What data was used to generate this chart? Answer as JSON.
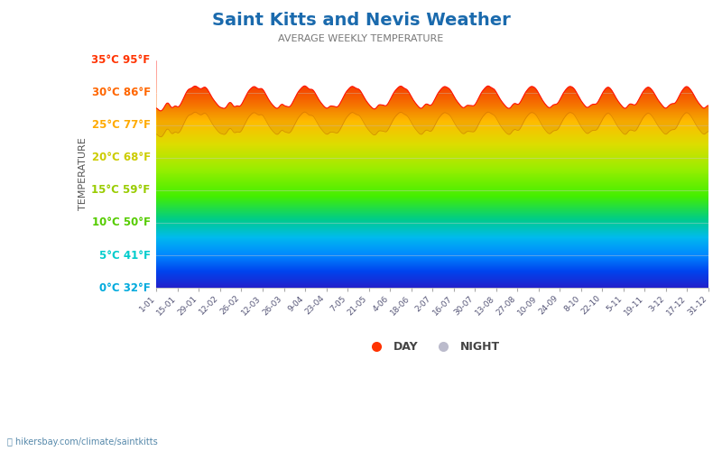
{
  "title": "Saint Kitts and Nevis Weather",
  "subtitle": "AVERAGE WEEKLY TEMPERATURE",
  "ylabel": "TEMPERATURE",
  "website": "hikersbay.com/climate/saintkitts",
  "yticks_c": [
    0,
    5,
    10,
    15,
    20,
    25,
    30,
    35
  ],
  "yticks_f": [
    32,
    41,
    50,
    59,
    68,
    77,
    86,
    95
  ],
  "ylim_min": 0,
  "ylim_max": 35,
  "xtick_labels": [
    "1-01",
    "15-01",
    "29-01",
    "12-02",
    "26-02",
    "12-03",
    "26-03",
    "9-04",
    "23-04",
    "7-05",
    "21-05",
    "4-06",
    "18-06",
    "2-07",
    "16-07",
    "30-07",
    "13-08",
    "27-08",
    "10-09",
    "24-09",
    "8-10",
    "22-10",
    "5-11",
    "19-11",
    "3-12",
    "17-12",
    "31-12"
  ],
  "title_color": "#1a6aad",
  "subtitle_color": "#777777",
  "ylabel_color": "#555555",
  "tick_colors": {
    "0": "#00aadd",
    "5": "#00cccc",
    "10": "#55cc00",
    "15": "#99cc00",
    "20": "#cccc00",
    "25": "#ffaa00",
    "30": "#ff6600",
    "35": "#ff3300"
  },
  "legend_day_color": "#ff3300",
  "legend_night_color": "#bbbbcc",
  "background_color": "#ffffff",
  "rainbow_colors": [
    [
      0.0,
      "#2222cc"
    ],
    [
      0.07,
      "#0044ee"
    ],
    [
      0.14,
      "#0088ff"
    ],
    [
      0.22,
      "#00bbee"
    ],
    [
      0.3,
      "#00cc88"
    ],
    [
      0.4,
      "#44ee00"
    ],
    [
      0.52,
      "#99ee00"
    ],
    [
      0.63,
      "#dddd00"
    ],
    [
      0.73,
      "#ffbb00"
    ],
    [
      0.83,
      "#ff6600"
    ],
    [
      0.92,
      "#ff2200"
    ],
    [
      1.0,
      "#ff0000"
    ]
  ],
  "day_temps_weekly": [
    27.8,
    27.5,
    27.3,
    27.2,
    27.0,
    27.1,
    27.3,
    27.6,
    27.9,
    28.2,
    28.6,
    28.7,
    28.4,
    28.0,
    27.6,
    27.4,
    27.6,
    27.9,
    28.3,
    28.0,
    27.7,
    27.5,
    27.8,
    28.1,
    28.4,
    28.7,
    29.0,
    29.5,
    29.8,
    30.1,
    30.4,
    30.6,
    30.7,
    30.5,
    30.6,
    30.8,
    31.0,
    31.2,
    31.0,
    30.9,
    30.8,
    30.7,
    30.5,
    30.4,
    30.6,
    30.8,
    30.9,
    31.0,
    30.8,
    30.6,
    30.3,
    30.0,
    29.7,
    29.4,
    29.1,
    28.9,
    28.7,
    28.5,
    28.3,
    28.1,
    27.9,
    27.7,
    27.6,
    27.8,
    27.6,
    27.5,
    27.4,
    27.6,
    27.9,
    28.2,
    28.5,
    28.8,
    28.6,
    28.3,
    27.9,
    27.5,
    27.7,
    28.0,
    28.3,
    27.9,
    27.6,
    27.8,
    28.1,
    28.4,
    28.7,
    29.1,
    29.4,
    29.7,
    30.0,
    30.3,
    30.5,
    30.6,
    30.7,
    30.9,
    31.1,
    31.0,
    30.8,
    30.7,
    30.5,
    30.4,
    30.6,
    30.8,
    30.7,
    30.5,
    30.2,
    29.9,
    29.6,
    29.3,
    29.0,
    28.7,
    28.5,
    28.3,
    28.1,
    27.9,
    27.8,
    27.6,
    27.5,
    27.4,
    27.6,
    27.9,
    28.2,
    28.5,
    28.3,
    28.0,
    27.7,
    27.9,
    28.1,
    27.8,
    27.5,
    27.8,
    28.0,
    28.3,
    28.6,
    29.0,
    29.3,
    29.6,
    29.9,
    30.2,
    30.4,
    30.5,
    30.7,
    30.9,
    31.0,
    31.2,
    31.1,
    30.9,
    30.7,
    30.5,
    30.3,
    30.5,
    30.7,
    30.5,
    30.3,
    30.0,
    29.7,
    29.4,
    29.1,
    28.8,
    28.6,
    28.4,
    28.2,
    28.0,
    27.8,
    27.7,
    27.5,
    27.4,
    27.6,
    27.9,
    28.2,
    28.0,
    27.7,
    27.9,
    28.1,
    27.8,
    27.5,
    27.7,
    28.0,
    28.2,
    28.5,
    28.8,
    29.2,
    29.5,
    29.8,
    30.1,
    30.3,
    30.5,
    30.6,
    30.8,
    31.0,
    31.1,
    31.0,
    30.8,
    30.7,
    30.5,
    30.6,
    30.7,
    30.5,
    30.3,
    30.0,
    29.7,
    29.4,
    29.1,
    28.8,
    28.6,
    28.4,
    28.2,
    28.0,
    27.8,
    27.7,
    27.5,
    27.4,
    27.3,
    27.5,
    27.8,
    28.1,
    28.4,
    28.2,
    27.9,
    28.1,
    28.3,
    28.0,
    27.7,
    27.9,
    28.1,
    28.4,
    28.7,
    29.0,
    29.3,
    29.7,
    30.0,
    30.2,
    30.4,
    30.6,
    30.7,
    30.9,
    31.0,
    31.2,
    31.0,
    30.8,
    30.6,
    30.5,
    30.7,
    30.5,
    30.3,
    30.0,
    29.7,
    29.4,
    29.1,
    28.8,
    28.6,
    28.4,
    28.2,
    28.0,
    27.8,
    27.6,
    27.5,
    27.4,
    27.6,
    27.9,
    28.2,
    28.4,
    28.2,
    28.4,
    28.1,
    27.8,
    27.9,
    28.1,
    28.4,
    28.7,
    29.0,
    29.4,
    29.7,
    30.0,
    30.2,
    30.4,
    30.6,
    30.7,
    30.9,
    31.1,
    31.0,
    30.8,
    30.7,
    30.8,
    30.6,
    30.4,
    30.1,
    29.8,
    29.5,
    29.2,
    28.9,
    28.7,
    28.5,
    28.3,
    28.1,
    27.9,
    27.7,
    27.6,
    27.5,
    27.7,
    28.0,
    28.3,
    28.1,
    27.8,
    28.0,
    28.2,
    28.0,
    27.7,
    27.9,
    28.2,
    28.5,
    28.8,
    29.1,
    29.5,
    29.8,
    30.1,
    30.3,
    30.5,
    30.7,
    30.8,
    31.0,
    31.2,
    31.1,
    30.9,
    30.7,
    30.6,
    30.8,
    30.6,
    30.4,
    30.1,
    29.8,
    29.5,
    29.2,
    28.9,
    28.7,
    28.5,
    28.3,
    28.1,
    27.9,
    27.7,
    27.6,
    27.5,
    27.4,
    27.6,
    27.9,
    28.2,
    28.5,
    28.3,
    28.5,
    28.2,
    27.9,
    28.1,
    28.4,
    28.7,
    29.0,
    29.3,
    29.7,
    30.0,
    30.2,
    30.4,
    30.6,
    30.8,
    30.9,
    31.1,
    31.0,
    30.8,
    30.9,
    30.7,
    30.5,
    30.2,
    29.9,
    29.6,
    29.3,
    29.0,
    28.7,
    28.5,
    28.3,
    28.1,
    27.9,
    27.7,
    27.6,
    27.5,
    27.7,
    28.0,
    28.3,
    28.1,
    28.3,
    28.0,
    28.2,
    28.4,
    28.7,
    29.0,
    29.4,
    29.7,
    30.0,
    30.2,
    30.4,
    30.6,
    30.8,
    30.9,
    31.1,
    31.0,
    30.8,
    30.9,
    30.7,
    30.5,
    30.2,
    29.9,
    29.6,
    29.3,
    29.0,
    28.7,
    28.5,
    28.3,
    28.1,
    27.9,
    27.7,
    27.5,
    27.6,
    27.9,
    28.2,
    28.0,
    28.2,
    28.4,
    28.2,
    28.0,
    28.2,
    28.4,
    28.7,
    29.1,
    29.4,
    29.7,
    30.0,
    30.3,
    30.5,
    30.7,
    30.8,
    31.0,
    30.9,
    30.7,
    30.5,
    30.3,
    30.0,
    29.7,
    29.4,
    29.1,
    28.8,
    28.6,
    28.4,
    28.2,
    28.0,
    27.8,
    27.6,
    27.5,
    27.4,
    27.6,
    27.9,
    28.2,
    28.5,
    28.3,
    28.1,
    28.3,
    28.1,
    27.8,
    28.1,
    28.4,
    28.7,
    29.0,
    29.3,
    29.6,
    30.0,
    30.2,
    30.4,
    30.6,
    30.7,
    30.9,
    31.0,
    30.8,
    30.7,
    30.5,
    30.3,
    30.1,
    29.8,
    29.5,
    29.2,
    28.9,
    28.7,
    28.5,
    28.3,
    28.1,
    27.9,
    27.7,
    27.5,
    27.4,
    27.6,
    27.9,
    28.2,
    28.0,
    28.3,
    28.5,
    28.3,
    28.1,
    28.3,
    28.6,
    28.9,
    29.2,
    29.6,
    29.9,
    30.2,
    30.4,
    30.6,
    30.8,
    31.0,
    31.1,
    30.9,
    30.8,
    30.6,
    30.4,
    30.2,
    29.9,
    29.6,
    29.3,
    29.0,
    28.7,
    28.5,
    28.3,
    28.1,
    27.9,
    27.7,
    27.5,
    27.4,
    27.6,
    27.9,
    28.2,
    28.0
  ],
  "night_temps_weekly": [
    23.8,
    23.5,
    23.3,
    23.2,
    23.0,
    23.1,
    23.3,
    23.6,
    23.9,
    24.2,
    24.6,
    24.7,
    24.4,
    24.0,
    23.6,
    23.4,
    23.6,
    23.9,
    24.3,
    24.0,
    23.7,
    23.5,
    23.8,
    24.1,
    24.4,
    24.7,
    25.0,
    25.5,
    25.8,
    26.1,
    26.4,
    26.6,
    26.7,
    26.5,
    26.6,
    26.8,
    27.0,
    27.2,
    27.0,
    26.9,
    26.8,
    26.7,
    26.5,
    26.4,
    26.6,
    26.8,
    26.9,
    27.0,
    26.8,
    26.6,
    26.3,
    26.0,
    25.7,
    25.4,
    25.1,
    24.9,
    24.7,
    24.5,
    24.3,
    24.1,
    23.9,
    23.7,
    23.6,
    23.8,
    23.6,
    23.5,
    23.4,
    23.6,
    23.9,
    24.2,
    24.5,
    24.8,
    24.6,
    24.3,
    23.9,
    23.5,
    23.7,
    24.0,
    24.3,
    23.9,
    23.6,
    23.8,
    24.1,
    24.4,
    24.7,
    25.1,
    25.4,
    25.7,
    26.0,
    26.3,
    26.5,
    26.6,
    26.7,
    26.9,
    27.1,
    27.0,
    26.8,
    26.7,
    26.5,
    26.4,
    26.6,
    26.8,
    26.7,
    26.5,
    26.2,
    25.9,
    25.6,
    25.3,
    25.0,
    24.7,
    24.5,
    24.3,
    24.1,
    23.9,
    23.8,
    23.6,
    23.5,
    23.4,
    23.6,
    23.9,
    24.2,
    24.5,
    24.3,
    24.0,
    23.7,
    23.9,
    24.1,
    23.8,
    23.5,
    23.8,
    24.0,
    24.3,
    24.6,
    25.0,
    25.3,
    25.6,
    25.9,
    26.2,
    26.4,
    26.5,
    26.7,
    26.9,
    27.0,
    27.2,
    27.1,
    26.9,
    26.7,
    26.5,
    26.3,
    26.5,
    26.7,
    26.5,
    26.3,
    26.0,
    25.7,
    25.4,
    25.1,
    24.8,
    24.6,
    24.4,
    24.2,
    24.0,
    23.8,
    23.7,
    23.5,
    23.4,
    23.6,
    23.9,
    24.2,
    24.0,
    23.7,
    23.9,
    24.1,
    23.8,
    23.5,
    23.7,
    24.0,
    24.2,
    24.5,
    24.8,
    25.2,
    25.5,
    25.8,
    26.1,
    26.3,
    26.5,
    26.6,
    26.8,
    27.0,
    27.1,
    27.0,
    26.8,
    26.7,
    26.5,
    26.6,
    26.7,
    26.5,
    26.3,
    26.0,
    25.7,
    25.4,
    25.1,
    24.8,
    24.6,
    24.4,
    24.2,
    24.0,
    23.8,
    23.7,
    23.5,
    23.4,
    23.3,
    23.5,
    23.8,
    24.1,
    24.4,
    24.2,
    23.9,
    24.1,
    24.3,
    24.0,
    23.7,
    23.9,
    24.1,
    24.4,
    24.7,
    25.0,
    25.3,
    25.7,
    26.0,
    26.2,
    26.4,
    26.6,
    26.7,
    26.9,
    27.0,
    27.2,
    27.0,
    26.8,
    26.6,
    26.5,
    26.7,
    26.5,
    26.3,
    26.0,
    25.7,
    25.4,
    25.1,
    24.8,
    24.6,
    24.4,
    24.2,
    24.0,
    23.8,
    23.6,
    23.5,
    23.4,
    23.6,
    23.9,
    24.2,
    24.4,
    24.2,
    24.4,
    24.1,
    23.8,
    23.9,
    24.1,
    24.4,
    24.7,
    25.0,
    25.4,
    25.7,
    26.0,
    26.2,
    26.4,
    26.6,
    26.7,
    26.9,
    27.1,
    27.0,
    26.8,
    26.7,
    26.8,
    26.6,
    26.4,
    26.1,
    25.8,
    25.5,
    25.2,
    24.9,
    24.7,
    24.5,
    24.3,
    24.1,
    23.9,
    23.7,
    23.6,
    23.5,
    23.7,
    24.0,
    24.3,
    24.1,
    23.8,
    24.0,
    24.2,
    24.0,
    23.7,
    23.9,
    24.2,
    24.5,
    24.8,
    25.1,
    25.5,
    25.8,
    26.1,
    26.3,
    26.5,
    26.7,
    26.8,
    27.0,
    27.2,
    27.1,
    26.9,
    26.7,
    26.6,
    26.8,
    26.6,
    26.4,
    26.1,
    25.8,
    25.5,
    25.2,
    24.9,
    24.7,
    24.5,
    24.3,
    24.1,
    23.9,
    23.7,
    23.6,
    23.5,
    23.4,
    23.6,
    23.9,
    24.2,
    24.5,
    24.3,
    24.5,
    24.2,
    23.9,
    24.1,
    24.4,
    24.7,
    25.0,
    25.3,
    25.7,
    26.0,
    26.2,
    26.4,
    26.6,
    26.8,
    26.9,
    27.1,
    27.0,
    26.8,
    26.9,
    26.7,
    26.5,
    26.2,
    25.9,
    25.6,
    25.3,
    25.0,
    24.7,
    24.5,
    24.3,
    24.1,
    23.9,
    23.7,
    23.6,
    23.5,
    23.7,
    24.0,
    24.3,
    24.1,
    24.3,
    24.0,
    24.2,
    24.4,
    24.7,
    25.0,
    25.4,
    25.7,
    26.0,
    26.2,
    26.4,
    26.6,
    26.8,
    26.9,
    27.1,
    27.0,
    26.8,
    26.9,
    26.7,
    26.5,
    26.2,
    25.9,
    25.6,
    25.3,
    25.0,
    24.7,
    24.5,
    24.3,
    24.1,
    23.9,
    23.7,
    23.5,
    23.6,
    23.9,
    24.2,
    24.0,
    24.2,
    24.4,
    24.2,
    24.0,
    24.2,
    24.4,
    24.7,
    25.1,
    25.4,
    25.7,
    26.0,
    26.3,
    26.5,
    26.7,
    26.8,
    27.0,
    26.9,
    26.7,
    26.5,
    26.3,
    26.0,
    25.7,
    25.4,
    25.1,
    24.8,
    24.6,
    24.4,
    24.2,
    24.0,
    23.8,
    23.6,
    23.5,
    23.4,
    23.6,
    23.9,
    24.2,
    24.5,
    24.3,
    24.1,
    24.3,
    24.1,
    23.8,
    24.1,
    24.4,
    24.7,
    25.0,
    25.3,
    25.6,
    26.0,
    26.2,
    26.4,
    26.6,
    26.7,
    26.9,
    27.0,
    26.8,
    26.7,
    26.5,
    26.3,
    26.1,
    25.8,
    25.5,
    25.2,
    24.9,
    24.7,
    24.5,
    24.3,
    24.1,
    23.9,
    23.7,
    23.5,
    23.4,
    23.6,
    23.9,
    24.2,
    24.0,
    24.3,
    24.5,
    24.3,
    24.1,
    24.3,
    24.6,
    24.9,
    25.2,
    25.6,
    25.9,
    26.2,
    26.4,
    26.6,
    26.8,
    27.0,
    27.1,
    26.9,
    26.8,
    26.6,
    26.4,
    26.2,
    25.9,
    25.6,
    25.3,
    25.0,
    24.7,
    24.5,
    24.3,
    24.1,
    23.9,
    23.7,
    23.5,
    23.4,
    23.6,
    23.9,
    24.2,
    24.0
  ]
}
